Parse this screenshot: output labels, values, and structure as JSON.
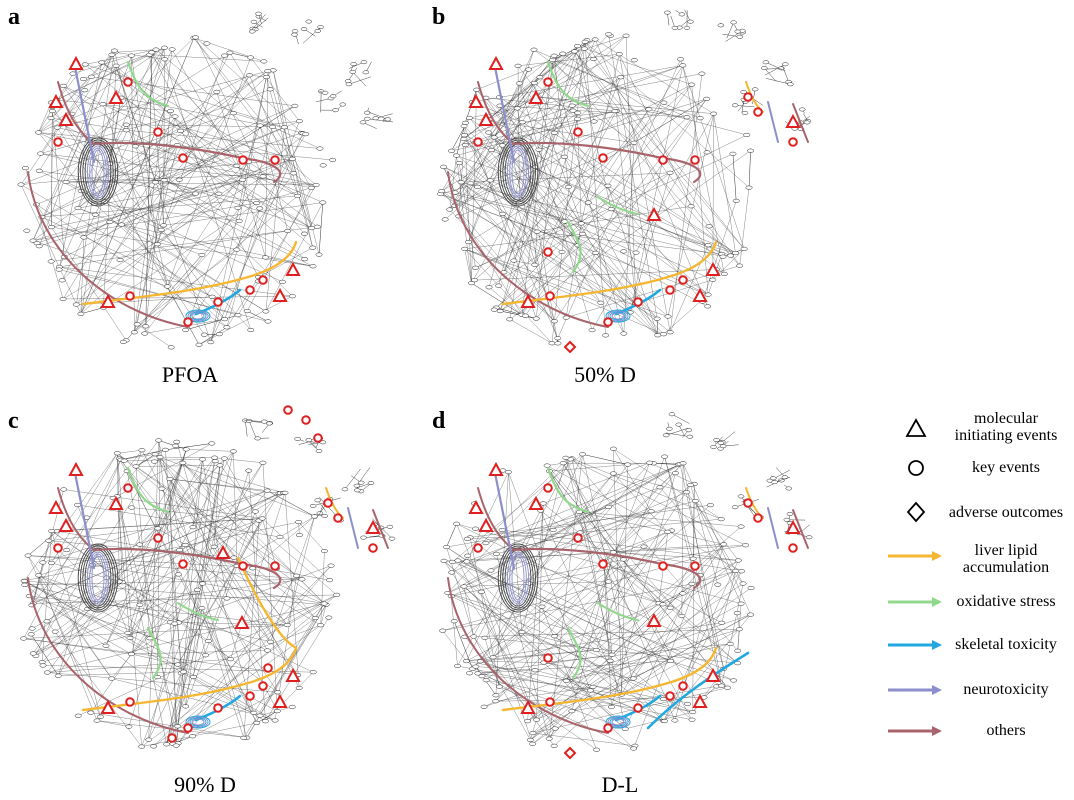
{
  "panels": [
    {
      "letter": "a",
      "caption": "PFOA",
      "key": "pfoa"
    },
    {
      "letter": "b",
      "caption": "50% D",
      "key": "d50"
    },
    {
      "letter": "c",
      "caption": "90% D",
      "key": "d90"
    },
    {
      "letter": "d",
      "caption": "D-L",
      "key": "dl"
    }
  ],
  "legend": {
    "mie": "molecular\ninitiating events",
    "ke": "key events",
    "ao": "adverse outcomes",
    "liver": "liver lipid\naccumulation",
    "oxidative": "oxidative stress",
    "skeletal": "skeletal toxicity",
    "neuro": "neurotoxicity",
    "others": "others"
  },
  "colors": {
    "liver": "#F5B731",
    "oxidative": "#90D98C",
    "skeletal": "#22A8E0",
    "neuro": "#8C8FCB",
    "others": "#A9646B",
    "marker": "#E02020",
    "network": "#333333"
  },
  "highlights": {
    "pfoa": [
      "others",
      "neuro",
      "oxidative",
      "liver",
      "skeletal"
    ],
    "d50": [
      "others",
      "neuro",
      "oxidative",
      "liver",
      "skeletal"
    ],
    "d90": [
      "others",
      "neuro",
      "oxidative",
      "liver",
      "skeletal"
    ],
    "dl": [
      "others",
      "neuro",
      "oxidative",
      "liver",
      "skeletal"
    ]
  }
}
